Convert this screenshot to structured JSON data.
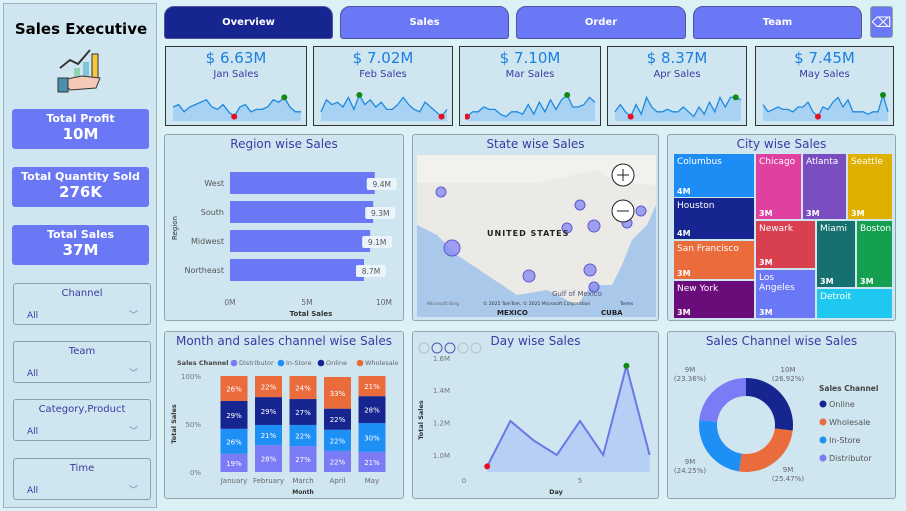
{
  "sidebar": {
    "title": "Sales Executive",
    "kpis": [
      {
        "label": "Total Profit",
        "value": "10M"
      },
      {
        "label": "Total Quantity Sold",
        "value": "276K"
      },
      {
        "label": "Total Sales",
        "value": "37M"
      }
    ],
    "filters": [
      {
        "label": "Channel",
        "value": "All"
      },
      {
        "label": "Team",
        "value": "All"
      },
      {
        "label": "Category,Product",
        "value": "All"
      },
      {
        "label": "Time",
        "value": "All"
      }
    ]
  },
  "tabs": [
    {
      "label": "Overview",
      "active": true
    },
    {
      "label": "Sales"
    },
    {
      "label": "Order"
    },
    {
      "label": "Team"
    }
  ],
  "month_cards": [
    {
      "value": "$ 6.63M",
      "label": "Jan Sales",
      "spark": [
        5,
        6,
        3,
        5,
        6,
        7,
        8,
        5,
        4,
        6,
        3,
        1,
        5,
        6,
        3,
        4,
        4,
        5,
        8,
        7,
        9,
        5,
        3,
        3
      ]
    },
    {
      "value": "$ 7.02M",
      "label": "Feb Sales",
      "spark": [
        3,
        8,
        6,
        7,
        5,
        9,
        4,
        10,
        6,
        8,
        5,
        7,
        4,
        4,
        6,
        9,
        6,
        4,
        3,
        7,
        5,
        3,
        1,
        4
      ]
    },
    {
      "value": "$ 7.10M",
      "label": "Mar Sales",
      "spark": [
        1,
        3,
        3,
        5,
        4,
        4,
        2,
        1,
        3,
        3,
        2,
        6,
        2,
        7,
        3,
        8,
        4,
        8,
        10,
        5,
        5,
        6,
        9,
        7
      ]
    },
    {
      "value": "$ 8.37M",
      "label": "Apr Sales",
      "spark": [
        3,
        6,
        3,
        1,
        6,
        2,
        9,
        5,
        3,
        3,
        4,
        3,
        3,
        5,
        3,
        1,
        5,
        2,
        7,
        3,
        9,
        5,
        9,
        9,
        8
      ]
    },
    {
      "value": "$ 7.45M",
      "label": "May Sales",
      "spark": [
        6,
        3,
        4,
        5,
        4,
        4,
        3,
        5,
        5,
        7,
        3,
        1,
        5,
        4,
        7,
        9,
        5,
        8,
        3,
        3,
        3,
        2,
        3,
        3,
        10,
        3
      ]
    }
  ],
  "colors": {
    "accent": "#6b78f5",
    "dark": "#172590",
    "online": "#172590",
    "wholesale": "#ea6b3c",
    "instore": "#1e90f5",
    "distributor": "#7b7bf5",
    "high": "#108a10",
    "low": "#e81020"
  },
  "region": {
    "title": "Region wise Sales",
    "ylabel": "Region",
    "xlabel": "Total Sales",
    "ticks": [
      "0M",
      "5M",
      "10M"
    ],
    "xlim": [
      0,
      10
    ],
    "chart_data": {
      "type": "bar",
      "categories": [
        "West",
        "South",
        "Midwest",
        "Northeast"
      ],
      "values": [
        9.4,
        9.3,
        9.1,
        8.7
      ],
      "labels": [
        "9.4M",
        "9.3M",
        "9.1M",
        "8.7M"
      ]
    }
  },
  "map": {
    "title": "State wise Sales",
    "country": "UNITED STATES",
    "gulf": "Gulf of Mexico",
    "mexico": "MEXICO",
    "cuba": "CUBA",
    "bing": "Microsoft Bing",
    "copyright": "© 2025 TomTom, © 2025 Microsoft Corporation",
    "terms": "Terms"
  },
  "city": {
    "title": "City wise Sales",
    "cells": [
      {
        "name": "Columbus",
        "value": "4M",
        "color": "#1e8cf5"
      },
      {
        "name": "Houston",
        "value": "4M",
        "color": "#172590"
      },
      {
        "name": "San Francisco",
        "value": "3M",
        "color": "#ea6b3c"
      },
      {
        "name": "New York",
        "value": "3M",
        "color": "#6a0c7a"
      },
      {
        "name": "Chicago",
        "value": "3M",
        "color": "#e040a0"
      },
      {
        "name": "Atlanta",
        "value": "3M",
        "color": "#7a4ec0"
      },
      {
        "name": "Seattle",
        "value": "3M",
        "color": "#dfb000"
      },
      {
        "name": "Newark",
        "value": "3M",
        "color": "#d84050"
      },
      {
        "name": "Miami",
        "value": "3M",
        "color": "#177070"
      },
      {
        "name": "Boston",
        "value": "3M",
        "color": "#14a050"
      },
      {
        "name": "Los Angeles",
        "value": "3M",
        "color": "#6b78f5"
      },
      {
        "name": "Detroit",
        "value": "",
        "color": "#1ec8f0"
      }
    ]
  },
  "month_chart": {
    "title": "Month and sales channel wise Sales",
    "legend_title": "Sales Channel",
    "ylabel": "Total Sales",
    "xlabel": "Month",
    "yticks": [
      "100%",
      "50%",
      "0%"
    ],
    "chart_data": {
      "type": "bar",
      "stacked": true,
      "categories": [
        "January",
        "February",
        "March",
        "April",
        "May"
      ],
      "series": [
        {
          "name": "Distributor",
          "values": [
            19,
            28,
            27,
            22,
            21
          ]
        },
        {
          "name": "In-Store",
          "values": [
            26,
            21,
            22,
            22,
            30
          ]
        },
        {
          "name": "Online",
          "values": [
            29,
            29,
            27,
            22,
            28
          ]
        },
        {
          "name": "Wholesale",
          "values": [
            26,
            22,
            24,
            33,
            21
          ]
        }
      ]
    }
  },
  "day_chart": {
    "title": "Day wise Sales",
    "ylabel": "Total Sales",
    "xlabel": "Day",
    "yticks": [
      "1.6M",
      "1.4M",
      "1.2M",
      "1.0M"
    ],
    "xticks": [
      "0",
      "5"
    ],
    "chart_data": {
      "type": "area",
      "x": [
        1,
        2,
        3,
        4,
        5,
        6,
        7,
        8
      ],
      "y": [
        0.93,
        1.21,
        1.09,
        1.0,
        1.21,
        1.0,
        1.55,
        1.0
      ],
      "unit": "M"
    }
  },
  "donut": {
    "title": "Sales Channel wise Sales",
    "legend_title": "Sales Channel",
    "chart_data": {
      "type": "pie",
      "categories": [
        "Online",
        "Wholesale",
        "In-Store",
        "Distributor"
      ],
      "percent": [
        26.92,
        25.47,
        24.25,
        23.36
      ],
      "labels": [
        "10M",
        "9M",
        "9M",
        "9M"
      ],
      "pct_labels": [
        "(26.92%)",
        "(25.47%)",
        "(24.25%)",
        "(23.36%)"
      ]
    }
  }
}
